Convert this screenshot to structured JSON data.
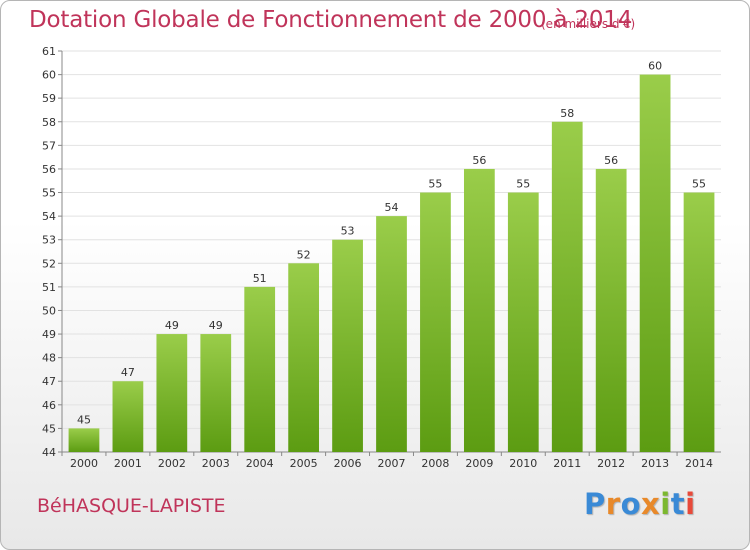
{
  "chart_data": {
    "type": "bar",
    "title": "Dotation Globale de Fonctionnement de 2000 à 2014",
    "subtitle": "(en milliers d'€)",
    "categories": [
      "2000",
      "2001",
      "2002",
      "2003",
      "2004",
      "2005",
      "2006",
      "2007",
      "2008",
      "2009",
      "2010",
      "2011",
      "2012",
      "2013",
      "2014"
    ],
    "values": [
      45,
      47,
      49,
      49,
      51,
      52,
      53,
      54,
      55,
      56,
      55,
      58,
      56,
      60,
      55
    ],
    "ylim": [
      44,
      61
    ],
    "yticks": [
      44,
      45,
      46,
      47,
      48,
      49,
      50,
      51,
      52,
      53,
      54,
      55,
      56,
      57,
      58,
      59,
      60,
      61
    ],
    "grid": true,
    "bar_color_top": "#9acd4a",
    "bar_color_bottom": "#5c9c12"
  },
  "footer": {
    "commune": "BéHASQUE-LAPISTE",
    "logo_letters": [
      {
        "ch": "P",
        "color": "#3a8ad6"
      },
      {
        "ch": "r",
        "color": "#e8892a"
      },
      {
        "ch": "o",
        "color": "#3a8ad6"
      },
      {
        "ch": "x",
        "color": "#e8892a"
      },
      {
        "ch": "i",
        "color": "#7cb82f"
      },
      {
        "ch": "t",
        "color": "#3a8ad6"
      },
      {
        "ch": "i",
        "color": "#e84a3a"
      }
    ]
  }
}
